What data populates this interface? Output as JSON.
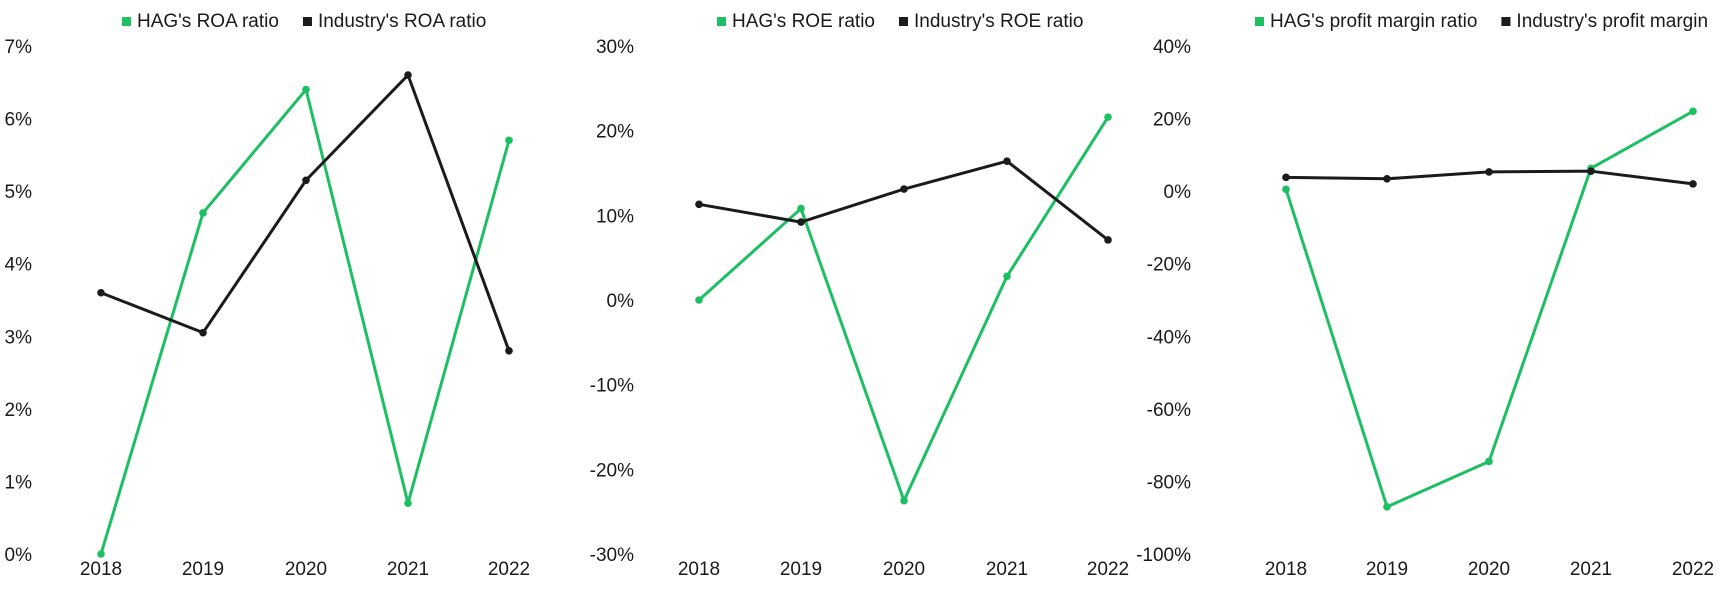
{
  "colors": {
    "hag": "#1dbf63",
    "industry": "#1b1b1b",
    "text": "#1a1a1a"
  },
  "chart_data": [
    {
      "type": "line",
      "title": "",
      "xlabel": "",
      "ylabel": "",
      "categories": [
        "2018",
        "2019",
        "2020",
        "2021",
        "2022"
      ],
      "ylim": [
        0,
        7
      ],
      "yticks": [
        "0%",
        "1%",
        "2%",
        "3%",
        "4%",
        "5%",
        "6%",
        "7%"
      ],
      "ytick_values": [
        0,
        1,
        2,
        3,
        4,
        5,
        6,
        7
      ],
      "grid": false,
      "legend": "top",
      "series": [
        {
          "name": "HAG's ROA ratio",
          "color": "#1dbf63",
          "values": [
            0.0,
            4.7,
            6.4,
            0.7,
            5.7
          ]
        },
        {
          "name": "Industry's ROA ratio",
          "color": "#1b1b1b",
          "values": [
            3.6,
            3.05,
            5.15,
            6.6,
            2.8
          ]
        }
      ]
    },
    {
      "type": "line",
      "title": "",
      "xlabel": "",
      "ylabel": "",
      "categories": [
        "2018",
        "2019",
        "2020",
        "2021",
        "2022"
      ],
      "ylim": [
        -30,
        30
      ],
      "yticks": [
        "-30%",
        "-20%",
        "-10%",
        "0%",
        "10%",
        "20%",
        "30%"
      ],
      "ytick_values": [
        -30,
        -20,
        -10,
        0,
        10,
        20,
        30
      ],
      "grid": false,
      "legend": "top",
      "series": [
        {
          "name": "HAG's ROE ratio",
          "color": "#1dbf63",
          "values": [
            0.0,
            10.8,
            -23.7,
            2.8,
            21.6
          ]
        },
        {
          "name": "Industry's ROE ratio",
          "color": "#1b1b1b",
          "values": [
            11.3,
            9.2,
            13.1,
            16.4,
            7.1
          ]
        }
      ]
    },
    {
      "type": "line",
      "title": "",
      "xlabel": "",
      "ylabel": "",
      "categories": [
        "2018",
        "2019",
        "2020",
        "2021",
        "2022"
      ],
      "ylim": [
        -100,
        40
      ],
      "yticks": [
        "-100%",
        "-80%",
        "-60%",
        "-40%",
        "-20%",
        "0%",
        "20%",
        "40%"
      ],
      "ytick_values": [
        -100,
        -80,
        -60,
        -40,
        -20,
        0,
        20,
        40
      ],
      "grid": false,
      "legend": "top",
      "series": [
        {
          "name": "HAG's profit margin ratio",
          "color": "#1dbf63",
          "values": [
            0.5,
            -87.0,
            -74.5,
            6.3,
            22.0
          ]
        },
        {
          "name": "Industry's profit margin",
          "color": "#1b1b1b",
          "values": [
            3.8,
            3.4,
            5.3,
            5.5,
            2.0
          ]
        }
      ]
    }
  ]
}
